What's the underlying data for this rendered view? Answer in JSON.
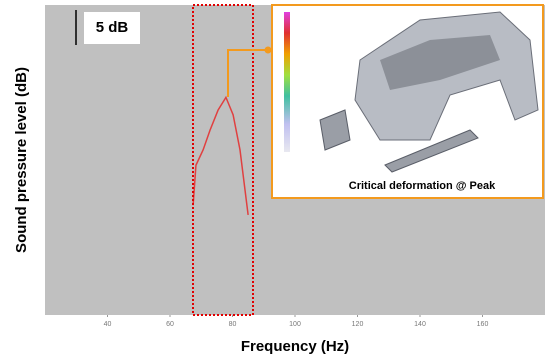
{
  "chart_data": {
    "type": "line",
    "x_label": "Frequency (Hz)",
    "y_label": "Sound pressure level (dB)",
    "scale_label": "5 dB",
    "inset_caption": "Critical deformation @ Peak",
    "x": [
      67.4,
      68.3,
      70.6,
      72.8,
      75.4,
      77.9,
      80.2,
      82.4,
      85
    ],
    "series": [
      {
        "color": "#e04040",
        "values": [
          15.7,
          21.4,
          23.6,
          26.4,
          29.3,
          31.1,
          28.6,
          23.6,
          14.3
        ]
      }
    ],
    "xlim": [
      20,
      180
    ],
    "xticks": [
      40,
      60,
      80,
      100,
      120,
      140,
      160
    ],
    "ylim": [
      0,
      44.3
    ],
    "background": "#c0c0c0"
  }
}
